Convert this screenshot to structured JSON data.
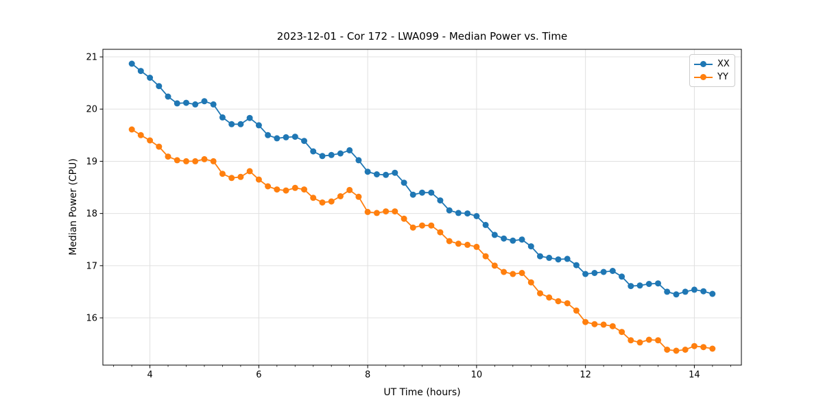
{
  "chart_data": {
    "type": "line",
    "title": "2023-12-01 - Cor 172 - LWA099 - Median Power vs. Time",
    "xlabel": "UT Time (hours)",
    "ylabel": "Median Power (CPU)",
    "xlim": [
      3.136,
      14.864
    ],
    "ylim": [
      15.095,
      21.145
    ],
    "x_major_ticks": [
      4,
      6,
      8,
      10,
      12,
      14
    ],
    "x_minor_step": 0.33333,
    "y_major_ticks": [
      16,
      17,
      18,
      19,
      20,
      21
    ],
    "grid": true,
    "grid_color": "#e0e0e0",
    "legend_position": "upper right",
    "x": [
      3.667,
      3.833,
      4.0,
      4.167,
      4.333,
      4.5,
      4.667,
      4.833,
      5.0,
      5.167,
      5.333,
      5.5,
      5.667,
      5.833,
      6.0,
      6.167,
      6.333,
      6.5,
      6.667,
      6.833,
      7.0,
      7.167,
      7.333,
      7.5,
      7.667,
      7.833,
      8.0,
      8.167,
      8.333,
      8.5,
      8.667,
      8.833,
      9.0,
      9.167,
      9.333,
      9.5,
      9.667,
      9.833,
      10.0,
      10.167,
      10.333,
      10.5,
      10.667,
      10.833,
      11.0,
      11.167,
      11.333,
      11.5,
      11.667,
      11.833,
      12.0,
      12.167,
      12.333,
      12.5,
      12.667,
      12.833,
      13.0,
      13.167,
      13.333,
      13.5,
      13.667,
      13.833,
      14.0,
      14.167,
      14.333
    ],
    "series": [
      {
        "name": "XX",
        "color": "#1f77b4",
        "marker": "circle",
        "values": [
          20.87,
          20.73,
          20.6,
          20.44,
          20.24,
          20.11,
          20.12,
          20.09,
          20.15,
          20.09,
          19.84,
          19.71,
          19.71,
          19.83,
          19.69,
          19.5,
          19.44,
          19.46,
          19.47,
          19.39,
          19.19,
          19.1,
          19.12,
          19.15,
          19.21,
          19.02,
          18.8,
          18.75,
          18.74,
          18.78,
          18.59,
          18.36,
          18.4,
          18.4,
          18.25,
          18.06,
          18.01,
          18.0,
          17.95,
          17.78,
          17.59,
          17.52,
          17.48,
          17.5,
          17.37,
          17.18,
          17.15,
          17.12,
          17.13,
          17.01,
          16.84,
          16.86,
          16.88,
          16.9,
          16.79,
          16.61,
          16.62,
          16.65,
          16.66,
          16.5,
          16.45,
          16.5,
          16.54,
          16.51,
          16.46
        ]
      },
      {
        "name": "YY",
        "color": "#ff7f0e",
        "marker": "circle",
        "values": [
          19.61,
          19.5,
          19.4,
          19.28,
          19.09,
          19.02,
          19.0,
          19.0,
          19.04,
          19.0,
          18.76,
          18.68,
          18.7,
          18.81,
          18.65,
          18.52,
          18.46,
          18.44,
          18.49,
          18.46,
          18.3,
          18.21,
          18.23,
          18.33,
          18.45,
          18.32,
          18.03,
          18.01,
          18.04,
          18.04,
          17.9,
          17.73,
          17.77,
          17.77,
          17.64,
          17.47,
          17.42,
          17.4,
          17.36,
          17.18,
          17.0,
          16.88,
          16.84,
          16.86,
          16.68,
          16.47,
          16.39,
          16.32,
          16.28,
          16.14,
          15.92,
          15.88,
          15.87,
          15.84,
          15.73,
          15.57,
          15.53,
          15.58,
          15.57,
          15.39,
          15.37,
          15.39,
          15.46,
          15.44,
          15.41
        ]
      }
    ]
  }
}
